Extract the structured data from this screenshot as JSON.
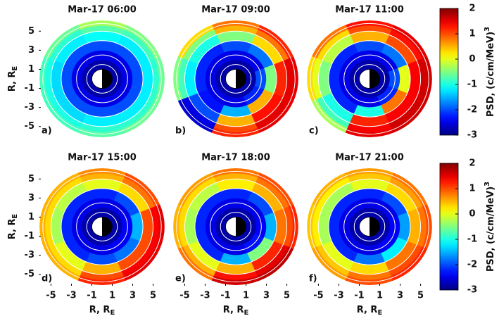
{
  "chart_data": [
    {
      "type": "polar_heatmap",
      "title": "Mar-17 06:00",
      "panel_label": "a)",
      "colormap": "jet",
      "clim": [
        -3,
        2
      ],
      "r_edges": [
        1.2,
        2,
        3,
        4,
        5,
        5.6,
        6.1
      ],
      "circles_r": [
        1.5,
        2.5,
        4,
        5,
        5.8
      ],
      "earth_r": 1,
      "xlim": [
        -6.2,
        6.2
      ],
      "ylim": [
        -6.2,
        6.2
      ],
      "yticks": [
        5,
        3,
        1,
        -1,
        -3,
        -5
      ],
      "ylabel": {
        "text": "R, R",
        "sub": "E"
      },
      "values": [
        [
          -2.8,
          -2.8,
          -2.8,
          -2.8,
          -2.8,
          -2.8,
          -2.8,
          -2.8
        ],
        [
          -2.5,
          -2.5,
          -2.5,
          -2.5,
          -2.5,
          -2.5,
          -2.5,
          -2.5
        ],
        [
          -2.0,
          -2.0,
          -2.0,
          -2.0,
          -2.0,
          -2.0,
          -2.0,
          -2.0
        ],
        [
          -1.2,
          -1.2,
          -1.1,
          -1.2,
          -1.3,
          -1.3,
          -1.2,
          -1.2
        ],
        [
          -0.9,
          -0.8,
          -0.7,
          -0.9,
          -1.0,
          -1.0,
          -0.9,
          -0.9
        ],
        [
          -0.6,
          -0.5,
          -0.3,
          -0.6,
          -0.8,
          -0.8,
          -0.7,
          -0.6
        ]
      ]
    },
    {
      "type": "polar_heatmap",
      "title": "Mar-17 09:00",
      "panel_label": "b)",
      "colormap": "jet",
      "clim": [
        -3,
        2
      ],
      "r_edges": [
        1.2,
        2,
        3,
        4,
        5,
        5.6,
        6.1
      ],
      "circles_r": [
        1.5,
        2.5,
        4,
        5,
        5.8
      ],
      "earth_r": 1,
      "xlim": [
        -6.2,
        6.2
      ],
      "ylim": [
        -6.2,
        6.2
      ],
      "values": [
        [
          -2.8,
          -2.8,
          -2.8,
          -2.8,
          -2.8,
          -2.8,
          -2.8,
          -2.8
        ],
        [
          -2.0,
          -2.5,
          -2.5,
          -2.5,
          -2.5,
          -2.5,
          -2.5,
          -2.2
        ],
        [
          -0.5,
          -1.8,
          -2.0,
          -2.2,
          -2.2,
          -2.3,
          -1.5,
          0.5
        ],
        [
          1.2,
          0.3,
          -0.5,
          -1.0,
          -1.2,
          -2.0,
          0.5,
          1.3
        ],
        [
          1.5,
          0.8,
          0.5,
          -0.5,
          -0.8,
          -2.5,
          1.0,
          1.5
        ],
        [
          1.5,
          1.2,
          0.8,
          0.3,
          -0.5,
          -2.6,
          1.2,
          1.5
        ]
      ]
    },
    {
      "type": "polar_heatmap",
      "title": "Mar-17 11:00",
      "panel_label": "c)",
      "colormap": "jet",
      "clim": [
        -3,
        2
      ],
      "r_edges": [
        1.2,
        2,
        3,
        4,
        5,
        5.6,
        6.1
      ],
      "circles_r": [
        1.5,
        2.5,
        4,
        5,
        5.8
      ],
      "earth_r": 1,
      "xlim": [
        -6.2,
        6.2
      ],
      "ylim": [
        -6.2,
        6.2
      ],
      "values": [
        [
          -2.8,
          -2.8,
          -2.8,
          -2.8,
          -2.8,
          -2.8,
          -2.8,
          -2.8
        ],
        [
          -2.0,
          -2.5,
          -2.5,
          -2.5,
          -2.5,
          -2.5,
          -2.5,
          -2.2
        ],
        [
          0,
          -1.8,
          -2.0,
          -2.2,
          -2.2,
          -2.2,
          -1.0,
          0.8
        ],
        [
          1.4,
          1.0,
          0.5,
          -0.2,
          -0.5,
          -1.0,
          1.2,
          1.4
        ],
        [
          1.6,
          1.3,
          1.0,
          0.3,
          0,
          -0.8,
          1.4,
          1.6
        ],
        [
          1.6,
          1.5,
          1.3,
          0.8,
          0.3,
          -0.3,
          1.5,
          1.6
        ]
      ]
    },
    {
      "type": "polar_heatmap",
      "title": "Mar-17 15:00",
      "panel_label": "d)",
      "colormap": "jet",
      "clim": [
        -3,
        2
      ],
      "r_edges": [
        1.2,
        2,
        3,
        4,
        5,
        5.6,
        6.1
      ],
      "circles_r": [
        1.5,
        2.5,
        4,
        5,
        5.8
      ],
      "earth_r": 1,
      "xlim": [
        -6.2,
        6.2
      ],
      "ylim": [
        -6.2,
        6.2
      ],
      "xticks": [
        -5,
        -3,
        -1,
        1,
        3,
        5
      ],
      "yticks": [
        5,
        3,
        1,
        -1,
        -3,
        -5
      ],
      "xlabel": {
        "text": "R, R",
        "sub": "E"
      },
      "ylabel": {
        "text": "R, R",
        "sub": "E"
      },
      "values": [
        [
          -2.8,
          -2.8,
          -2.8,
          -2.8,
          -2.8,
          -2.8,
          -2.8,
          -2.8
        ],
        [
          -2.4,
          -2.5,
          -2.5,
          -2.5,
          -2.5,
          -2.5,
          -2.5,
          -2.4
        ],
        [
          -1.5,
          -2.0,
          -2.2,
          -2.2,
          -2.2,
          -2.2,
          -2.0,
          -1.8
        ],
        [
          1.0,
          0.3,
          0,
          -0.2,
          -0.3,
          0,
          0.5,
          1.0
        ],
        [
          1.4,
          0.8,
          0.5,
          0.3,
          0.3,
          0.3,
          1.0,
          1.4
        ],
        [
          1.5,
          1.0,
          0.7,
          0.5,
          0.5,
          0.5,
          1.2,
          1.5
        ]
      ]
    },
    {
      "type": "polar_heatmap",
      "title": "Mar-17 18:00",
      "panel_label": "e)",
      "colormap": "jet",
      "clim": [
        -3,
        2
      ],
      "r_edges": [
        1.2,
        2,
        3,
        4,
        5,
        5.6,
        6.1
      ],
      "circles_r": [
        1.5,
        2.5,
        4,
        5,
        5.8
      ],
      "earth_r": 1,
      "xlim": [
        -6.2,
        6.2
      ],
      "ylim": [
        -6.2,
        6.2
      ],
      "xticks": [
        -5,
        -3,
        -1,
        1,
        3,
        5
      ],
      "xlabel": {
        "text": "R, R",
        "sub": "E"
      },
      "values": [
        [
          -2.8,
          -2.8,
          -2.8,
          -2.8,
          -2.8,
          -2.8,
          -2.8,
          -2.8
        ],
        [
          -2.4,
          -2.5,
          -2.5,
          -2.5,
          -2.5,
          -2.5,
          -2.5,
          -2.3
        ],
        [
          -1.5,
          -2.0,
          -2.2,
          -2.2,
          -2.2,
          -2.2,
          -1.5,
          -0.5
        ],
        [
          0.8,
          0.5,
          0.2,
          -0.2,
          -0.3,
          0,
          0.5,
          1.2
        ],
        [
          1.0,
          0.8,
          0.5,
          0.3,
          0.3,
          0.5,
          1.3,
          1.5
        ],
        [
          1.2,
          1.0,
          0.8,
          0.6,
          0.5,
          0.8,
          1.6,
          1.7
        ]
      ]
    },
    {
      "type": "polar_heatmap",
      "title": "Mar-17 21:00",
      "panel_label": "f)",
      "colormap": "jet",
      "clim": [
        -3,
        2
      ],
      "r_edges": [
        1.2,
        2,
        3,
        4,
        5,
        5.6,
        6.1
      ],
      "circles_r": [
        1.5,
        2.5,
        4,
        5,
        5.8
      ],
      "earth_r": 1,
      "xlim": [
        -6.2,
        6.2
      ],
      "ylim": [
        -6.2,
        6.2
      ],
      "xticks": [
        -5,
        -3,
        -1,
        1,
        3,
        5
      ],
      "xlabel": {
        "text": "R, R",
        "sub": "E"
      },
      "values": [
        [
          -2.8,
          -2.8,
          -2.8,
          -2.8,
          -2.8,
          -2.8,
          -2.8,
          -2.8
        ],
        [
          -2.4,
          -2.5,
          -2.5,
          -2.5,
          -2.5,
          -2.5,
          -2.5,
          -2.4
        ],
        [
          -1.6,
          -2.0,
          -2.2,
          -2.2,
          -2.2,
          -2.2,
          -1.8,
          -1.2
        ],
        [
          0.5,
          0.3,
          0,
          -0.3,
          -0.3,
          0,
          0.3,
          0.8
        ],
        [
          0.8,
          0.6,
          0.4,
          0.2,
          0.2,
          0.4,
          0.8,
          1.0
        ],
        [
          1.0,
          0.8,
          0.6,
          0.5,
          0.4,
          0.6,
          1.0,
          1.2
        ]
      ]
    },
    {
      "type": "colorbar",
      "colormap": "jet",
      "clim": [
        -3,
        2
      ],
      "ticks": [
        2,
        1,
        0,
        -1,
        -2,
        -3
      ],
      "label": {
        "text": "PSD, (c/cm/MeV)",
        "sup": "3"
      }
    },
    {
      "type": "colorbar",
      "colormap": "jet",
      "clim": [
        -3,
        2
      ],
      "ticks": [
        2,
        1,
        0,
        -1,
        -2,
        -3
      ],
      "label": {
        "text": "PSD, (c/cm/MeV)",
        "sup": "3"
      }
    }
  ]
}
